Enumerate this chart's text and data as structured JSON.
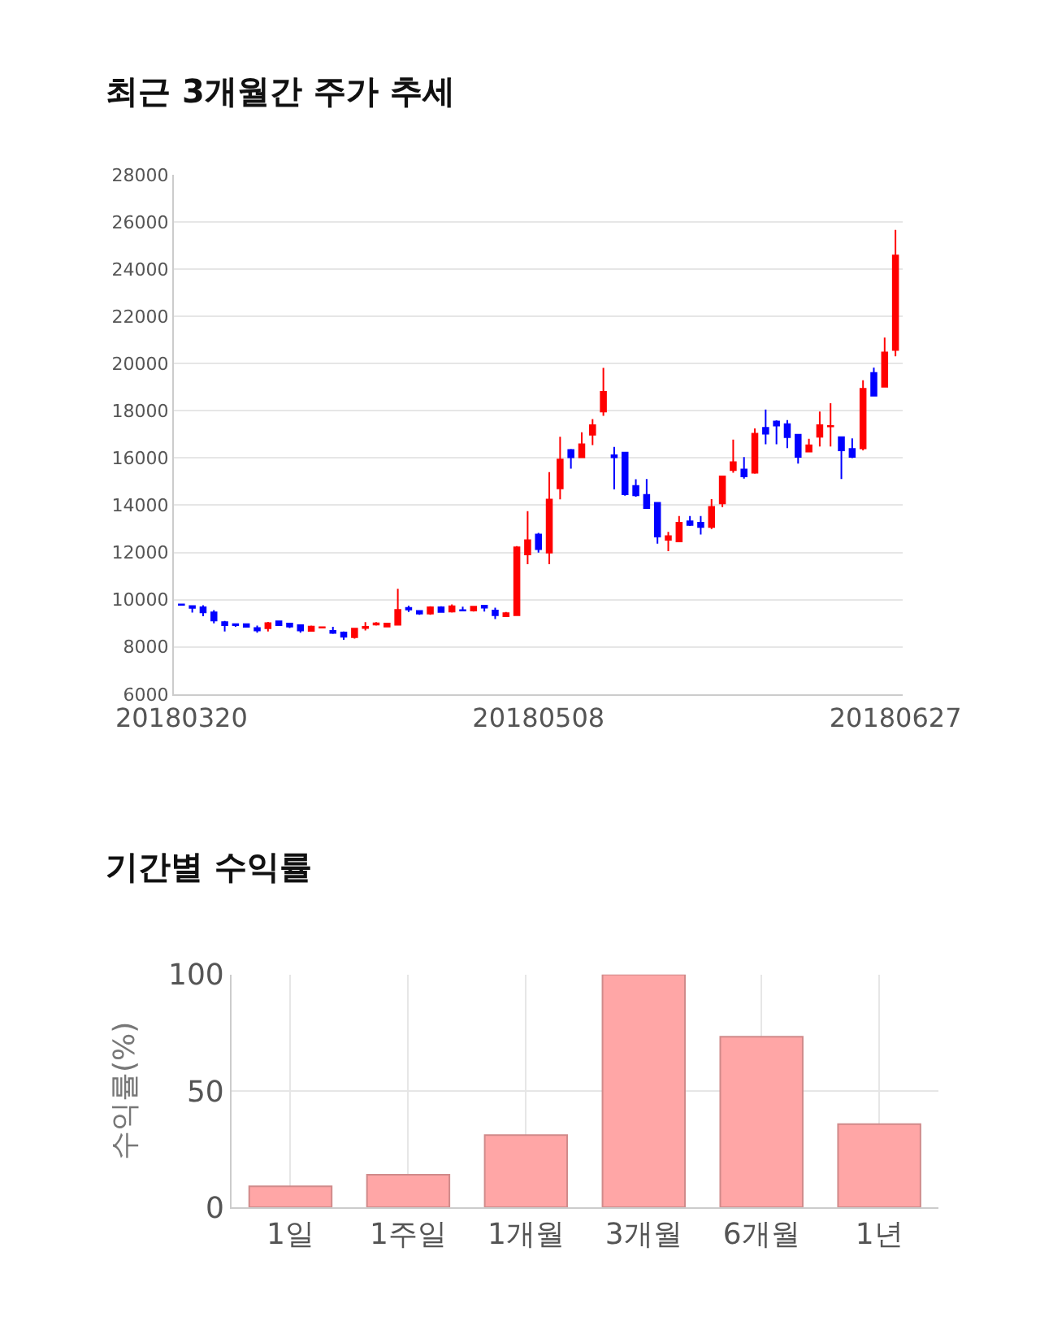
{
  "chart_data": [
    {
      "type": "candlestick",
      "title": "최근 3개월간 주가 추세",
      "categories": [
        "20180320",
        null,
        null,
        null,
        null,
        null,
        null,
        null,
        null,
        null,
        null,
        null,
        null,
        null,
        null,
        null,
        null,
        null,
        null,
        null,
        null,
        null,
        null,
        null,
        null,
        null,
        null,
        null,
        null,
        null,
        null,
        null,
        null,
        "20180508",
        null,
        null,
        null,
        null,
        null,
        null,
        null,
        null,
        null,
        null,
        null,
        null,
        null,
        null,
        null,
        null,
        null,
        null,
        null,
        null,
        null,
        null,
        null,
        null,
        null,
        null,
        null,
        null,
        null,
        null,
        null,
        null,
        "20180627"
      ],
      "ohlc": [
        [
          9800,
          9820,
          9760,
          9780
        ],
        [
          9730,
          9750,
          9450,
          9650
        ],
        [
          9680,
          9760,
          9300,
          9460
        ],
        [
          9460,
          9560,
          9000,
          9120
        ],
        [
          9050,
          9100,
          8650,
          8920
        ],
        [
          8960,
          9000,
          8850,
          8920
        ],
        [
          8960,
          8980,
          8820,
          8850
        ],
        [
          8800,
          8900,
          8600,
          8700
        ],
        [
          8790,
          9060,
          8650,
          9010
        ],
        [
          9080,
          9100,
          8900,
          8920
        ],
        [
          8990,
          9020,
          8800,
          8860
        ],
        [
          8920,
          8950,
          8600,
          8700
        ],
        [
          8680,
          8900,
          8650,
          8860
        ],
        [
          8820,
          8860,
          8780,
          8830
        ],
        [
          8680,
          8850,
          8550,
          8590
        ],
        [
          8610,
          8650,
          8300,
          8430
        ],
        [
          8410,
          8800,
          8350,
          8770
        ],
        [
          8800,
          9050,
          8700,
          8850
        ],
        [
          8950,
          9050,
          8900,
          9000
        ],
        [
          8860,
          9000,
          8850,
          8990
        ],
        [
          8940,
          10460,
          8940,
          9570
        ],
        [
          9650,
          9750,
          9480,
          9580
        ],
        [
          9520,
          9540,
          9360,
          9410
        ],
        [
          9410,
          9720,
          9360,
          9680
        ],
        [
          9680,
          9720,
          9450,
          9480
        ],
        [
          9500,
          9800,
          9450,
          9720
        ],
        [
          9560,
          9700,
          9520,
          9540
        ],
        [
          9540,
          9740,
          9500,
          9700
        ],
        [
          9750,
          9770,
          9500,
          9660
        ],
        [
          9540,
          9660,
          9180,
          9340
        ],
        [
          9300,
          9480,
          9270,
          9430
        ],
        [
          9340,
          12270,
          9320,
          12220
        ],
        [
          11920,
          13750,
          11500,
          12520
        ],
        [
          12760,
          12830,
          11990,
          12140
        ],
        [
          11990,
          15400,
          11500,
          14240
        ],
        [
          14710,
          16900,
          14250,
          15940
        ],
        [
          16340,
          16380,
          15550,
          16030
        ],
        [
          16030,
          17090,
          16030,
          16580
        ],
        [
          16990,
          17650,
          16550,
          17390
        ],
        [
          17970,
          19820,
          17790,
          18800
        ],
        [
          16120,
          16470,
          14670,
          16030
        ],
        [
          16230,
          16230,
          14400,
          14460
        ],
        [
          14820,
          15100,
          14360,
          14420
        ],
        [
          14440,
          15110,
          13850,
          13880
        ],
        [
          14100,
          14100,
          12370,
          12670
        ],
        [
          12540,
          12870,
          12050,
          12690
        ],
        [
          12470,
          13540,
          12470,
          13260
        ],
        [
          13320,
          13540,
          13120,
          13160
        ],
        [
          13260,
          13540,
          12760,
          13080
        ],
        [
          13080,
          14260,
          12990,
          13930
        ],
        [
          14080,
          15220,
          13920,
          15220
        ],
        [
          15490,
          16780,
          15380,
          15820
        ],
        [
          15510,
          16040,
          15130,
          15220
        ],
        [
          15380,
          17250,
          15330,
          17030
        ],
        [
          17280,
          18050,
          16580,
          17030
        ],
        [
          17550,
          17600,
          16580,
          17370
        ],
        [
          17430,
          17610,
          16420,
          16880
        ],
        [
          16990,
          16990,
          15760,
          16050
        ],
        [
          16270,
          16810,
          16270,
          16540
        ],
        [
          16900,
          17970,
          16490,
          17390
        ],
        [
          17340,
          18320,
          16490,
          17360
        ],
        [
          16880,
          16880,
          15110,
          16320
        ],
        [
          16380,
          16830,
          16000,
          16050
        ],
        [
          16410,
          19290,
          16320,
          18930
        ],
        [
          19600,
          19830,
          18640,
          18640
        ],
        [
          19020,
          21100,
          19020,
          20470
        ],
        [
          20580,
          25660,
          20310,
          24580
        ]
      ],
      "colors": [
        "#0000ff",
        "#0000ff",
        "#0000ff",
        "#0000ff",
        "#0000ff",
        "#0000ff",
        "#0000ff",
        "#0000ff",
        "#ff0000",
        "#0000ff",
        "#0000ff",
        "#0000ff",
        "#ff0000",
        "#ff0000",
        "#0000ff",
        "#0000ff",
        "#ff0000",
        "#ff0000",
        "#ff0000",
        "#ff0000",
        "#ff0000",
        "#0000ff",
        "#0000ff",
        "#ff0000",
        "#0000ff",
        "#ff0000",
        "#0000ff",
        "#ff0000",
        "#0000ff",
        "#0000ff",
        "#ff0000",
        "#ff0000",
        "#ff0000",
        "#0000ff",
        "#ff0000",
        "#ff0000",
        "#0000ff",
        "#ff0000",
        "#ff0000",
        "#ff0000",
        "#0000ff",
        "#0000ff",
        "#0000ff",
        "#0000ff",
        "#0000ff",
        "#ff0000",
        "#ff0000",
        "#0000ff",
        "#0000ff",
        "#ff0000",
        "#ff0000",
        "#ff0000",
        "#0000ff",
        "#ff0000",
        "#0000ff",
        "#0000ff",
        "#0000ff",
        "#0000ff",
        "#ff0000",
        "#ff0000",
        "#ff0000",
        "#0000ff",
        "#0000ff",
        "#ff0000",
        "#0000ff",
        "#ff0000",
        "#ff0000"
      ],
      "ylim": [
        6000,
        28000
      ],
      "yticks": [
        6000,
        8000,
        10000,
        12000,
        14000,
        16000,
        18000,
        20000,
        22000,
        24000,
        26000,
        28000
      ],
      "grid": "y"
    },
    {
      "type": "bar",
      "title": "기간별 수익률",
      "ylabel": "수익률(%)",
      "categories": [
        "1일",
        "1주일",
        "1개월",
        "3개월",
        "6개월",
        "1년"
      ],
      "values": [
        9.0,
        14.0,
        31.0,
        100,
        73.3,
        35.7
      ],
      "color": "#ffa6a6",
      "ylim": [
        0,
        100
      ],
      "yticks": [
        0,
        50,
        100
      ],
      "grid": true
    }
  ]
}
